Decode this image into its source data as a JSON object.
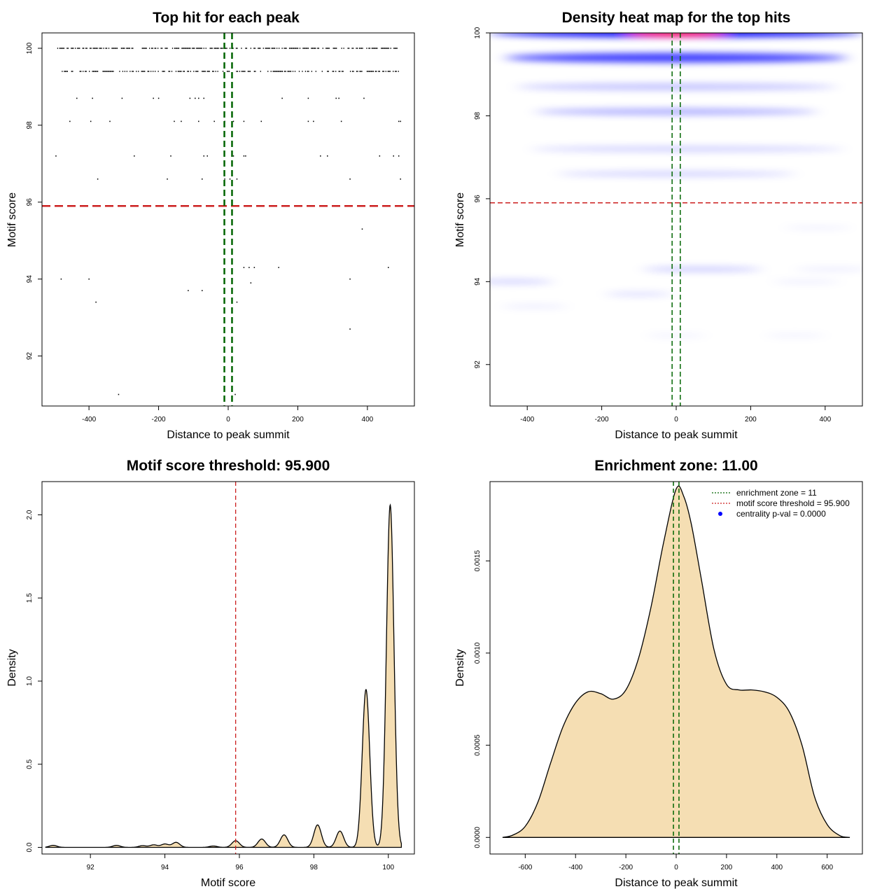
{
  "chart_data": [
    {
      "id": "scatter",
      "type": "scatter",
      "title": "Top hit for each peak",
      "xlabel": "Distance to peak summit",
      "ylabel": "Motif score",
      "xlim": [
        -535,
        535
      ],
      "ylim": [
        90.7,
        100.4
      ],
      "xticks": [
        -400,
        -200,
        0,
        200,
        400
      ],
      "xtick_labels": [
        "-400",
        "-200",
        "0",
        "200",
        "400"
      ],
      "yticks": [
        92,
        94,
        96,
        98,
        100
      ],
      "ytick_labels": [
        "92",
        "94",
        "96",
        "98",
        "100"
      ],
      "hlines": [
        {
          "y": 95.9,
          "color": "#cc1f1f",
          "dash": "12 6",
          "width": 2.5
        }
      ],
      "vlines": [
        {
          "x": -11,
          "color": "#006400",
          "dash": "9 5",
          "width": 2.5
        },
        {
          "x": 11,
          "color": "#006400",
          "dash": "9 5",
          "width": 2.5
        }
      ],
      "dense_rows": [
        {
          "y": 100.0,
          "xmin": -490,
          "xmax": 485,
          "density": 0.55
        },
        {
          "y": 99.4,
          "xmin": -480,
          "xmax": 500,
          "density": 0.45
        }
      ],
      "points": [
        [
          -435,
          98.7
        ],
        [
          -390,
          98.7
        ],
        [
          -305,
          98.7
        ],
        [
          -215,
          98.7
        ],
        [
          -200,
          98.7
        ],
        [
          -110,
          98.7
        ],
        [
          -95,
          98.7
        ],
        [
          -85,
          98.7
        ],
        [
          -70,
          98.7
        ],
        [
          155,
          98.7
        ],
        [
          230,
          98.7
        ],
        [
          310,
          98.7
        ],
        [
          318,
          98.7
        ],
        [
          390,
          98.7
        ],
        [
          -455,
          98.1
        ],
        [
          -395,
          98.1
        ],
        [
          -340,
          98.1
        ],
        [
          -155,
          98.1
        ],
        [
          -135,
          98.1
        ],
        [
          -85,
          98.1
        ],
        [
          -40,
          98.1
        ],
        [
          -10,
          98.1
        ],
        [
          15,
          98.1
        ],
        [
          45,
          98.1
        ],
        [
          95,
          98.1
        ],
        [
          230,
          98.1
        ],
        [
          245,
          98.1
        ],
        [
          325,
          98.1
        ],
        [
          490,
          98.1
        ],
        [
          495,
          98.1
        ],
        [
          -495,
          97.2
        ],
        [
          -270,
          97.2
        ],
        [
          -165,
          97.2
        ],
        [
          -70,
          97.2
        ],
        [
          -60,
          97.2
        ],
        [
          15,
          97.2
        ],
        [
          45,
          97.2
        ],
        [
          50,
          97.2
        ],
        [
          265,
          97.2
        ],
        [
          285,
          97.2
        ],
        [
          435,
          97.2
        ],
        [
          475,
          97.2
        ],
        [
          490,
          97.2
        ],
        [
          -375,
          96.6
        ],
        [
          -175,
          96.6
        ],
        [
          -75,
          96.6
        ],
        [
          -10,
          96.6
        ],
        [
          5,
          96.6
        ],
        [
          25,
          96.6
        ],
        [
          350,
          96.6
        ],
        [
          495,
          96.6
        ],
        [
          385,
          95.3
        ],
        [
          45,
          94.3
        ],
        [
          60,
          94.3
        ],
        [
          75,
          94.3
        ],
        [
          145,
          94.3
        ],
        [
          460,
          94.3
        ],
        [
          -480,
          94.0
        ],
        [
          -400,
          94.0
        ],
        [
          350,
          94.0
        ],
        [
          65,
          93.9
        ],
        [
          -115,
          93.7
        ],
        [
          -75,
          93.7
        ],
        [
          -380,
          93.4
        ],
        [
          25,
          93.4
        ],
        [
          350,
          92.7
        ],
        [
          -315,
          91.0
        ],
        [
          20,
          91.0
        ]
      ]
    },
    {
      "id": "heatmap",
      "type": "heatmap",
      "title": "Density heat map for the top hits",
      "xlabel": "Distance to peak summit",
      "ylabel": "Motif score",
      "xlim": [
        -500,
        500
      ],
      "ylim": [
        91.0,
        100.0
      ],
      "xticks": [
        -400,
        -200,
        0,
        200,
        400
      ],
      "xtick_labels": [
        "-400",
        "-200",
        "0",
        "200",
        "400"
      ],
      "yticks": [
        92,
        94,
        96,
        98,
        100
      ],
      "ytick_labels": [
        "92",
        "94",
        "96",
        "98",
        "100"
      ],
      "hlines": [
        {
          "y": 95.9,
          "color": "#cc1f1f",
          "dash": "7 4",
          "width": 1.5
        }
      ],
      "vlines": [
        {
          "x": -11,
          "color": "#006400",
          "dash": "7 4",
          "width": 1.5
        },
        {
          "x": 11,
          "color": "#006400",
          "dash": "7 4",
          "width": 1.5
        }
      ],
      "bands": [
        {
          "y": 99.4,
          "x": 0,
          "spread_x": 460,
          "spread_y": 0.11,
          "intensity": 0.8
        },
        {
          "y": 98.7,
          "x": 0,
          "spread_x": 430,
          "spread_y": 0.08,
          "intensity": 0.25
        },
        {
          "y": 98.1,
          "x": 0,
          "spread_x": 380,
          "spread_y": 0.08,
          "intensity": 0.32
        },
        {
          "y": 97.2,
          "x": 30,
          "spread_x": 420,
          "spread_y": 0.07,
          "intensity": 0.18
        },
        {
          "y": 96.6,
          "x": 0,
          "spread_x": 320,
          "spread_y": 0.06,
          "intensity": 0.2
        },
        {
          "y": 95.3,
          "x": 380,
          "spread_x": 90,
          "spread_y": 0.05,
          "intensity": 0.06
        },
        {
          "y": 94.3,
          "x": 70,
          "spread_x": 160,
          "spread_y": 0.06,
          "intensity": 0.22
        },
        {
          "y": 94.3,
          "x": 420,
          "spread_x": 100,
          "spread_y": 0.05,
          "intensity": 0.08
        },
        {
          "y": 94.0,
          "x": -440,
          "spread_x": 110,
          "spread_y": 0.06,
          "intensity": 0.18
        },
        {
          "y": 94.0,
          "x": 350,
          "spread_x": 90,
          "spread_y": 0.05,
          "intensity": 0.07
        },
        {
          "y": 93.7,
          "x": -100,
          "spread_x": 90,
          "spread_y": 0.05,
          "intensity": 0.15
        },
        {
          "y": 93.4,
          "x": -380,
          "spread_x": 90,
          "spread_y": 0.05,
          "intensity": 0.08
        },
        {
          "y": 92.7,
          "x": 0,
          "spread_x": 80,
          "spread_y": 0.05,
          "intensity": 0.06
        },
        {
          "y": 92.7,
          "x": 320,
          "spread_x": 80,
          "spread_y": 0.05,
          "intensity": 0.06
        }
      ],
      "peak": {
        "y": 100.0,
        "x": 0,
        "spread_x": 500,
        "spread_y": 0.1,
        "intensity": 1.0
      },
      "hot_spot": {
        "y": 100.0,
        "x": 0,
        "spread_x": 130,
        "spread_y": 0.08,
        "intensity": 1.0
      },
      "colors": {
        "low": "#ffffff",
        "mid": "#0000ff",
        "high": "#ff0000"
      }
    },
    {
      "id": "score_density",
      "type": "area",
      "title": "Motif score threshold: 95.900",
      "xlabel": "Motif score",
      "ylabel": "Density",
      "xlim": [
        90.7,
        100.7
      ],
      "ylim": [
        -0.04,
        2.2
      ],
      "xticks": [
        92,
        94,
        96,
        98,
        100
      ],
      "xtick_labels": [
        "92",
        "94",
        "96",
        "98",
        "100"
      ],
      "yticks": [
        0.0,
        0.5,
        1.0,
        1.5,
        2.0
      ],
      "ytick_labels": [
        "0.0",
        "0.5",
        "1.0",
        "1.5",
        "2.0"
      ],
      "vlines": [
        {
          "x": 95.9,
          "color": "#cc1f1f",
          "dash": "6 4",
          "width": 1.3
        }
      ],
      "curve_range": [
        90.8,
        100.35
      ],
      "components": [
        {
          "mu": 91.0,
          "sigma": 0.1,
          "height": 0.012
        },
        {
          "mu": 92.7,
          "sigma": 0.1,
          "height": 0.012
        },
        {
          "mu": 93.4,
          "sigma": 0.1,
          "height": 0.01
        },
        {
          "mu": 93.7,
          "sigma": 0.1,
          "height": 0.015
        },
        {
          "mu": 94.0,
          "sigma": 0.1,
          "height": 0.02
        },
        {
          "mu": 94.3,
          "sigma": 0.1,
          "height": 0.03
        },
        {
          "mu": 95.3,
          "sigma": 0.1,
          "height": 0.008
        },
        {
          "mu": 95.9,
          "sigma": 0.1,
          "height": 0.04
        },
        {
          "mu": 96.6,
          "sigma": 0.1,
          "height": 0.05
        },
        {
          "mu": 97.2,
          "sigma": 0.1,
          "height": 0.075
        },
        {
          "mu": 98.1,
          "sigma": 0.1,
          "height": 0.135
        },
        {
          "mu": 98.7,
          "sigma": 0.1,
          "height": 0.098
        },
        {
          "mu": 99.4,
          "sigma": 0.1,
          "height": 0.95
        },
        {
          "mu": 100.05,
          "sigma": 0.1,
          "height": 2.06
        }
      ],
      "fill": "#f5deb3"
    },
    {
      "id": "distance_density",
      "type": "area",
      "title": "Enrichment zone: 11.00",
      "xlabel": "Distance to peak summit",
      "ylabel": "Density",
      "xlim": [
        -740,
        740
      ],
      "ylim": [
        -9e-05,
        0.00193
      ],
      "xticks": [
        -600,
        -400,
        -200,
        0,
        200,
        400,
        600
      ],
      "xtick_labels": [
        "-600",
        "-400",
        "-200",
        "0",
        "200",
        "400",
        "600"
      ],
      "yticks": [
        0.0,
        0.0005,
        0.001,
        0.0015
      ],
      "ytick_labels": [
        "0.0000",
        "0.0005",
        "0.0010",
        "0.0015"
      ],
      "vlines": [
        {
          "x": -11,
          "color": "#006400",
          "dash": "6 4",
          "width": 1.5
        },
        {
          "x": 11,
          "color": "#006400",
          "dash": "6 4",
          "width": 1.5
        }
      ],
      "curve_points": [
        [
          -690,
          0.0
        ],
        [
          -650,
          1.2e-05
        ],
        [
          -600,
          6e-05
        ],
        [
          -550,
          0.00019
        ],
        [
          -500,
          0.0004
        ],
        [
          -450,
          0.0006
        ],
        [
          -400,
          0.00073
        ],
        [
          -350,
          0.00079
        ],
        [
          -300,
          0.00078
        ],
        [
          -250,
          0.00075
        ],
        [
          -200,
          0.0008
        ],
        [
          -150,
          0.00097
        ],
        [
          -100,
          0.00125
        ],
        [
          -50,
          0.0016
        ],
        [
          0,
          0.00189
        ],
        [
          30,
          0.00185
        ],
        [
          60,
          0.0017
        ],
        [
          100,
          0.0014
        ],
        [
          150,
          0.00102
        ],
        [
          200,
          0.00083
        ],
        [
          250,
          0.0008
        ],
        [
          300,
          0.0008
        ],
        [
          350,
          0.00079
        ],
        [
          400,
          0.00076
        ],
        [
          450,
          0.00068
        ],
        [
          500,
          0.0005
        ],
        [
          550,
          0.00022
        ],
        [
          600,
          7e-05
        ],
        [
          650,
          1e-05
        ],
        [
          690,
          0.0
        ]
      ],
      "fill": "#f5deb3",
      "legend": {
        "position": "top-right",
        "entries": [
          {
            "label": "enrichment zone = 11",
            "color": "#006400",
            "kind": "dotted-line"
          },
          {
            "label": "motif score threshold = 95.900",
            "color": "#cc1f1f",
            "kind": "dotted-line"
          },
          {
            "label": "centrality p-val = 0.0000",
            "color": "#0000ff",
            "kind": "point"
          }
        ]
      }
    }
  ]
}
